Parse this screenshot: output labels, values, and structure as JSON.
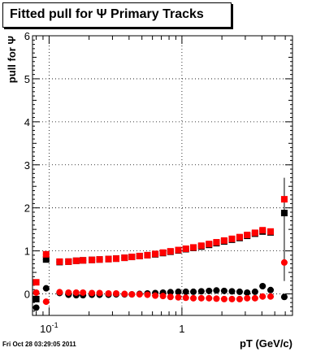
{
  "chart_data": {
    "type": "scatter",
    "title": "Fitted pull for  Ψ   Primary Tracks",
    "xlabel": "pT (GeV/c)",
    "ylabel": "pull for Ψ",
    "xscale": "log",
    "xlim": [
      0.075,
      6.8
    ],
    "ylim": [
      -0.5,
      6
    ],
    "grid": true,
    "x_tick_labels": [
      {
        "value": 0.1,
        "base": "10",
        "exp": "-1"
      },
      {
        "value": 1,
        "base": "1",
        "exp": ""
      }
    ],
    "y_ticks": [
      0,
      1,
      2,
      3,
      4,
      5,
      6
    ],
    "series": [
      {
        "marker": "square",
        "color": "#000000",
        "points": [
          [
            0.08,
            -0.12
          ],
          [
            0.095,
            0.8
          ],
          [
            0.12,
            0.74
          ],
          [
            0.14,
            0.75
          ],
          [
            0.16,
            0.77
          ],
          [
            0.18,
            0.78
          ],
          [
            0.21,
            0.79
          ],
          [
            0.24,
            0.8
          ],
          [
            0.28,
            0.81
          ],
          [
            0.32,
            0.82
          ],
          [
            0.37,
            0.84
          ],
          [
            0.42,
            0.86
          ],
          [
            0.48,
            0.88
          ],
          [
            0.55,
            0.9
          ],
          [
            0.63,
            0.92
          ],
          [
            0.72,
            0.95
          ],
          [
            0.82,
            0.98
          ],
          [
            0.94,
            1.01
          ],
          [
            1.07,
            1.04
          ],
          [
            1.22,
            1.07
          ],
          [
            1.4,
            1.1
          ],
          [
            1.6,
            1.14
          ],
          [
            1.82,
            1.18
          ],
          [
            2.08,
            1.22
          ],
          [
            2.38,
            1.26
          ],
          [
            2.72,
            1.3
          ],
          [
            3.1,
            1.35
          ],
          [
            3.55,
            1.4
          ],
          [
            4.05,
            1.45
          ],
          [
            4.65,
            1.43
          ],
          [
            5.9,
            1.88
          ]
        ]
      },
      {
        "marker": "square",
        "color": "#ff0000",
        "points": [
          [
            0.08,
            0.27
          ],
          [
            0.095,
            0.92
          ],
          [
            0.12,
            0.75
          ],
          [
            0.14,
            0.75
          ],
          [
            0.16,
            0.77
          ],
          [
            0.18,
            0.78
          ],
          [
            0.21,
            0.79
          ],
          [
            0.24,
            0.8
          ],
          [
            0.28,
            0.81
          ],
          [
            0.32,
            0.82
          ],
          [
            0.37,
            0.84
          ],
          [
            0.42,
            0.86
          ],
          [
            0.48,
            0.88
          ],
          [
            0.55,
            0.9
          ],
          [
            0.63,
            0.93
          ],
          [
            0.72,
            0.96
          ],
          [
            0.82,
            0.99
          ],
          [
            0.94,
            1.02
          ],
          [
            1.07,
            1.05
          ],
          [
            1.22,
            1.08
          ],
          [
            1.4,
            1.12
          ],
          [
            1.6,
            1.16
          ],
          [
            1.82,
            1.2
          ],
          [
            2.08,
            1.24
          ],
          [
            2.38,
            1.28
          ],
          [
            2.72,
            1.32
          ],
          [
            3.1,
            1.37
          ],
          [
            3.55,
            1.42
          ],
          [
            4.05,
            1.48
          ],
          [
            4.65,
            1.45
          ],
          [
            5.9,
            2.2
          ]
        ]
      },
      {
        "marker": "circle",
        "color": "#000000",
        "points": [
          [
            0.08,
            -0.32
          ],
          [
            0.095,
            0.13
          ],
          [
            0.12,
            0.02
          ],
          [
            0.14,
            -0.02
          ],
          [
            0.16,
            -0.03
          ],
          [
            0.18,
            -0.03
          ],
          [
            0.21,
            -0.02
          ],
          [
            0.24,
            -0.02
          ],
          [
            0.28,
            -0.02
          ],
          [
            0.32,
            -0.01
          ],
          [
            0.37,
            -0.01
          ],
          [
            0.42,
            -0.01
          ],
          [
            0.48,
            0.0
          ],
          [
            0.55,
            0.01
          ],
          [
            0.63,
            0.02
          ],
          [
            0.72,
            0.03
          ],
          [
            0.82,
            0.04
          ],
          [
            0.94,
            0.05
          ],
          [
            1.07,
            0.05
          ],
          [
            1.22,
            0.05
          ],
          [
            1.4,
            0.06
          ],
          [
            1.6,
            0.07
          ],
          [
            1.82,
            0.08
          ],
          [
            2.08,
            0.07
          ],
          [
            2.38,
            0.06
          ],
          [
            2.72,
            0.05
          ],
          [
            3.1,
            0.03
          ],
          [
            3.55,
            0.05
          ],
          [
            4.05,
            0.18
          ],
          [
            4.65,
            0.09
          ],
          [
            5.9,
            -0.07
          ]
        ]
      },
      {
        "marker": "circle",
        "color": "#ff0000",
        "points": [
          [
            0.08,
            0.03
          ],
          [
            0.095,
            -0.18
          ],
          [
            0.12,
            0.04
          ],
          [
            0.14,
            0.03
          ],
          [
            0.16,
            0.03
          ],
          [
            0.18,
            0.03
          ],
          [
            0.21,
            0.02
          ],
          [
            0.24,
            0.02
          ],
          [
            0.28,
            0.01
          ],
          [
            0.32,
            0.01
          ],
          [
            0.37,
            0.0
          ],
          [
            0.42,
            -0.01
          ],
          [
            0.48,
            -0.01
          ],
          [
            0.55,
            -0.02
          ],
          [
            0.63,
            -0.04
          ],
          [
            0.72,
            -0.05
          ],
          [
            0.82,
            -0.07
          ],
          [
            0.94,
            -0.08
          ],
          [
            1.07,
            -0.09
          ],
          [
            1.22,
            -0.1
          ],
          [
            1.4,
            -0.1
          ],
          [
            1.6,
            -0.1
          ],
          [
            1.82,
            -0.11
          ],
          [
            2.08,
            -0.12
          ],
          [
            2.38,
            -0.12
          ],
          [
            2.72,
            -0.12
          ],
          [
            3.1,
            -0.1
          ],
          [
            3.55,
            -0.1
          ],
          [
            4.05,
            -0.06
          ],
          [
            4.65,
            -0.06
          ],
          [
            5.9,
            0.73
          ]
        ]
      }
    ],
    "last_point_error_bar": {
      "x": 5.9,
      "low": 0.3,
      "high": 2.7
    }
  },
  "footer": {
    "date": "Fri Oct 28 03:29:05 2011"
  }
}
